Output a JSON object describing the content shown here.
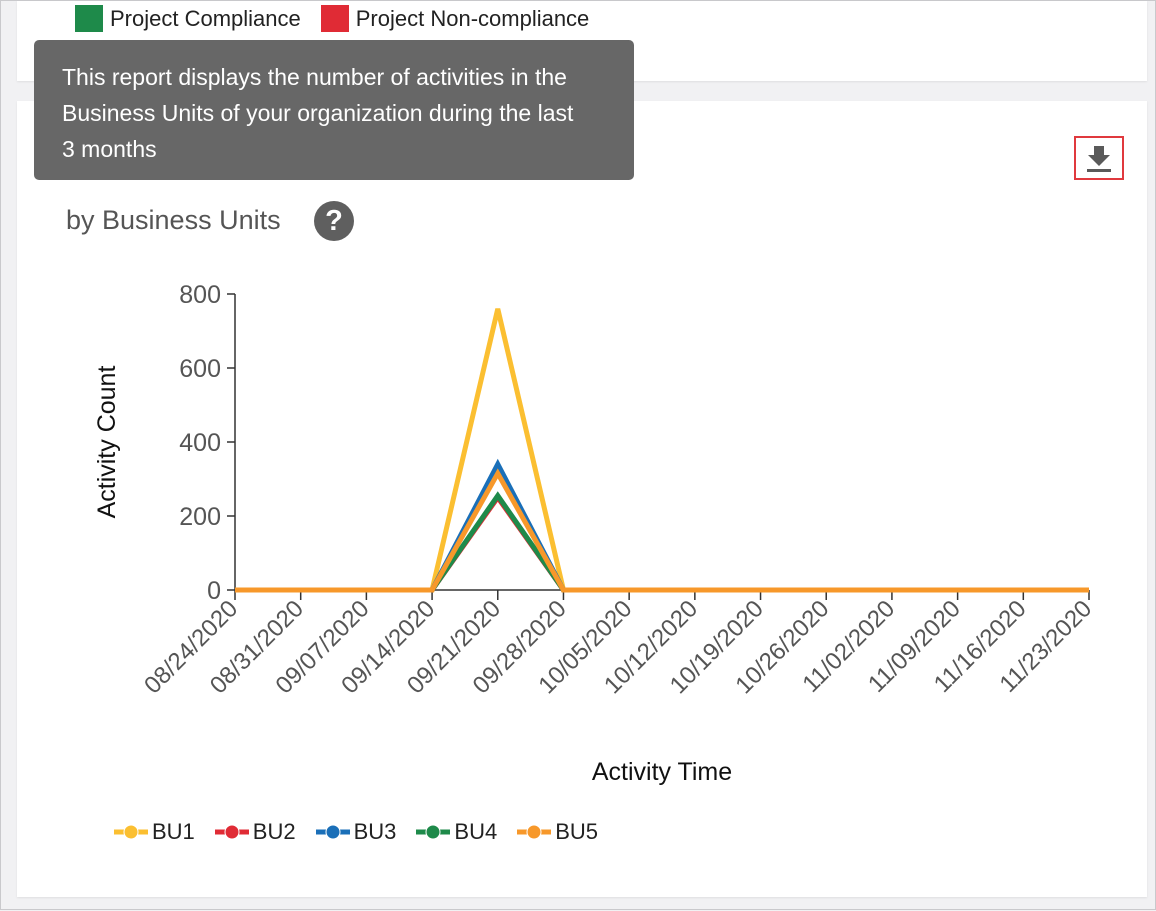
{
  "top_legend": [
    {
      "label": "Project Compliance",
      "color": "#1e8a4a"
    },
    {
      "label": "Project Non-compliance",
      "color": "#e02b35"
    }
  ],
  "tooltip": {
    "lines": [
      "This report displays the number of activities in the",
      "Business Units of your organization during the last",
      "3 months"
    ]
  },
  "header": {
    "subtitle": "by Business Units",
    "help_glyph": "?",
    "download_icon": "download-icon",
    "help_icon": "help-icon"
  },
  "chart_data": {
    "type": "line",
    "xlabel": "Activity Time",
    "ylabel": "Activity Count",
    "ylim": [
      0,
      800
    ],
    "yticks": [
      "0",
      "200",
      "400",
      "600",
      "800"
    ],
    "categories": [
      "08/24/2020",
      "08/31/2020",
      "09/07/2020",
      "09/14/2020",
      "09/21/2020",
      "09/28/2020",
      "10/05/2020",
      "10/12/2020",
      "10/19/2020",
      "10/26/2020",
      "11/02/2020",
      "11/09/2020",
      "11/16/2020",
      "11/23/2020"
    ],
    "series": [
      {
        "name": "BU1",
        "color": "#fbbf31",
        "values": [
          0,
          0,
          0,
          0,
          760,
          0,
          0,
          0,
          0,
          0,
          0,
          0,
          0,
          0
        ]
      },
      {
        "name": "BU2",
        "color": "#e02b35",
        "values": [
          0,
          0,
          0,
          0,
          250,
          0,
          0,
          0,
          0,
          0,
          0,
          0,
          0,
          0
        ]
      },
      {
        "name": "BU3",
        "color": "#1a6fb8",
        "values": [
          0,
          0,
          0,
          0,
          340,
          0,
          0,
          0,
          0,
          0,
          0,
          0,
          0,
          0
        ]
      },
      {
        "name": "BU4",
        "color": "#1e8a4a",
        "values": [
          0,
          0,
          0,
          0,
          255,
          0,
          0,
          0,
          0,
          0,
          0,
          0,
          0,
          0
        ]
      },
      {
        "name": "BU5",
        "color": "#f7982a",
        "values": [
          0,
          0,
          0,
          0,
          315,
          0,
          0,
          0,
          0,
          0,
          0,
          0,
          0,
          0
        ]
      }
    ],
    "legend_position": "bottom-left",
    "grid": false
  }
}
